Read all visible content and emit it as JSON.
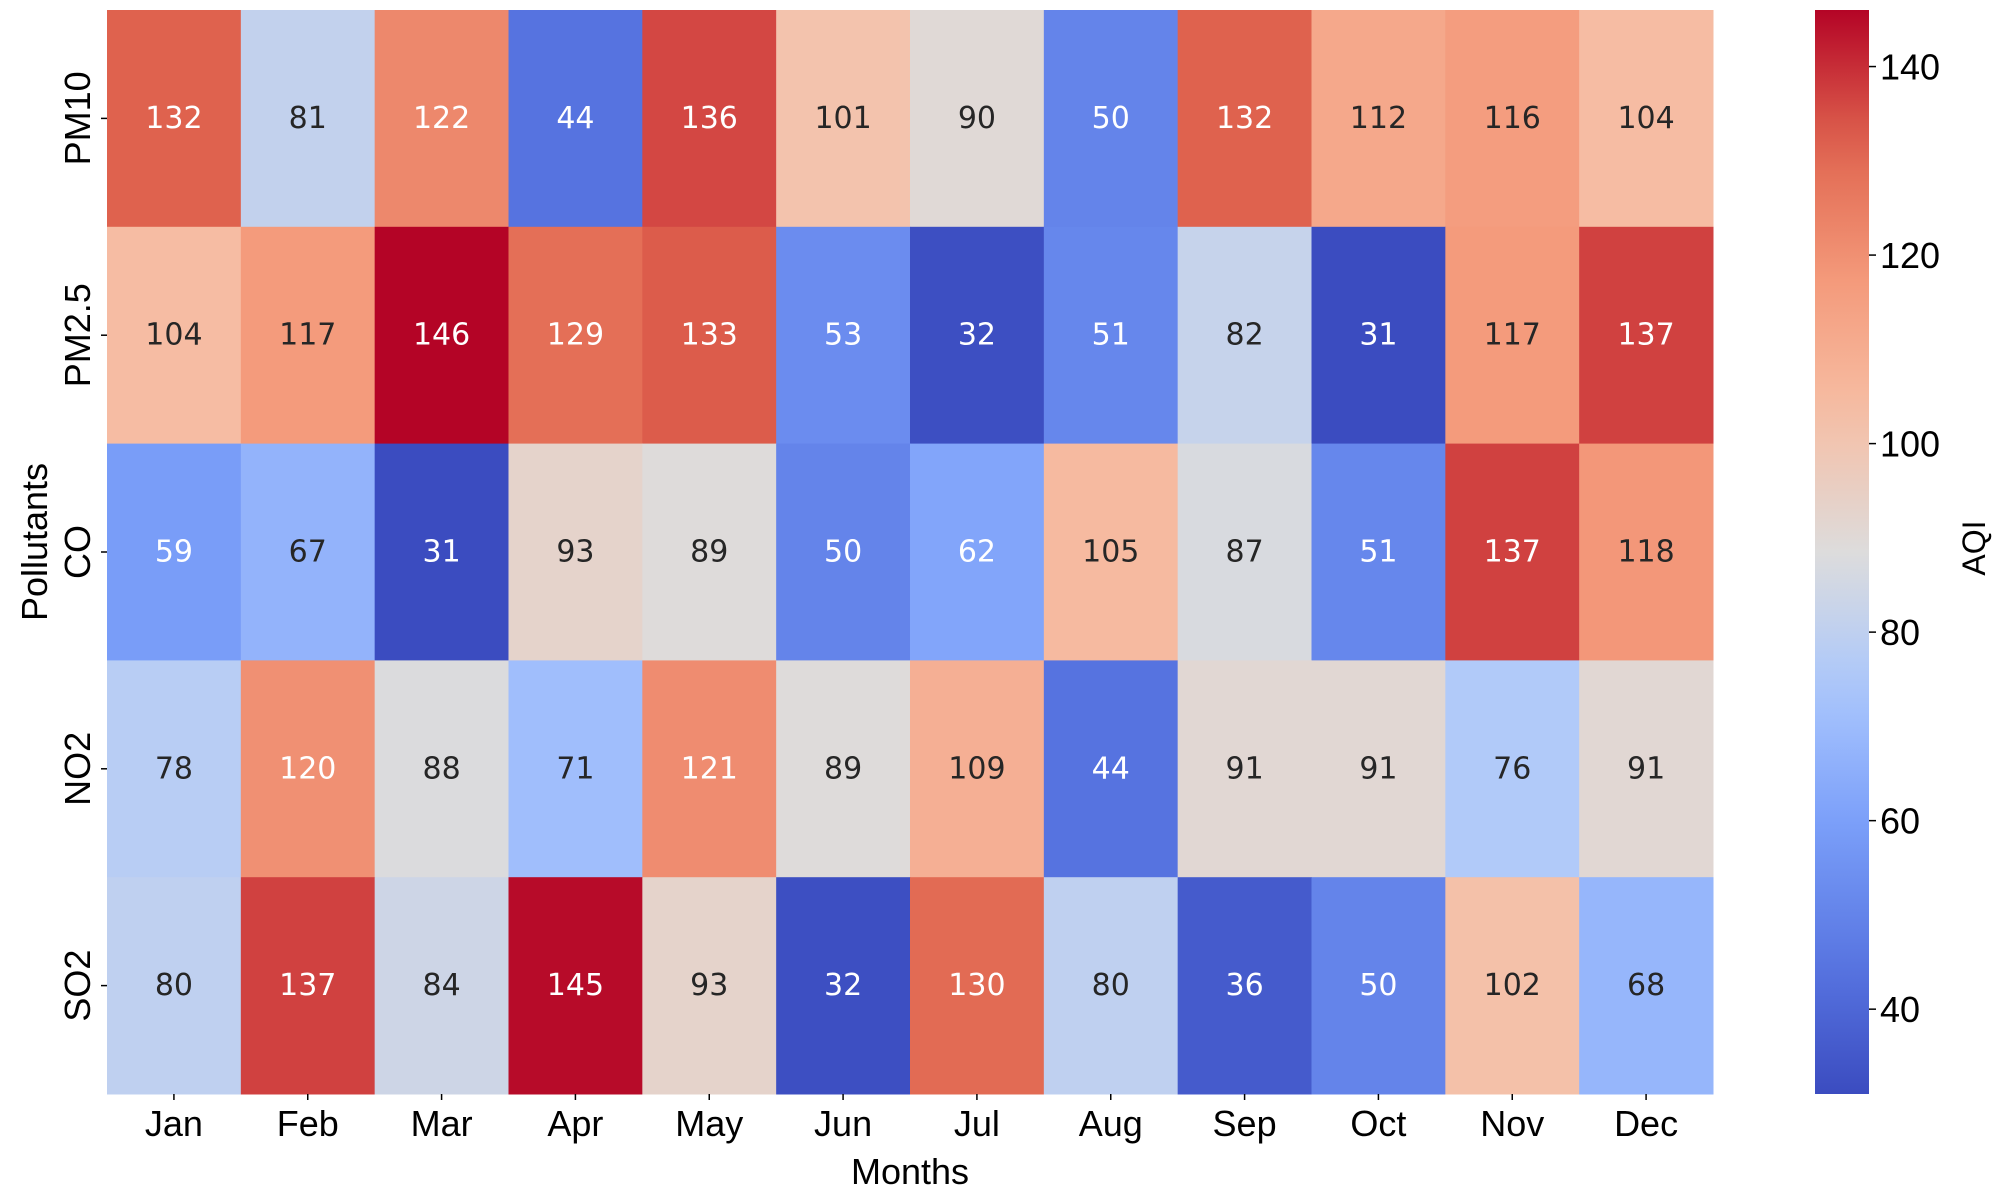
{
  "chart_data": {
    "type": "heatmap",
    "title": "",
    "xlabel": "Months",
    "ylabel": "Pollutants",
    "colorbar_label": "AQI",
    "colormap": "coolwarm",
    "x_categories": [
      "Jan",
      "Feb",
      "Mar",
      "Apr",
      "May",
      "Jun",
      "Jul",
      "Aug",
      "Sep",
      "Oct",
      "Nov",
      "Dec"
    ],
    "y_categories": [
      "PM10",
      "PM2.5",
      "CO",
      "NO2",
      "SO2"
    ],
    "values": [
      [
        132,
        81,
        122,
        44,
        136,
        101,
        90,
        50,
        132,
        112,
        116,
        104
      ],
      [
        104,
        117,
        146,
        129,
        133,
        53,
        32,
        51,
        82,
        31,
        117,
        137
      ],
      [
        59,
        67,
        31,
        93,
        89,
        50,
        62,
        105,
        87,
        51,
        137,
        118
      ],
      [
        78,
        120,
        88,
        71,
        121,
        89,
        109,
        44,
        91,
        91,
        76,
        91
      ],
      [
        80,
        137,
        84,
        145,
        93,
        32,
        130,
        80,
        36,
        50,
        102,
        68
      ]
    ],
    "color_range": [
      31,
      146
    ],
    "colorbar_ticks": [
      40,
      60,
      80,
      100,
      120,
      140
    ],
    "annotated": true
  }
}
